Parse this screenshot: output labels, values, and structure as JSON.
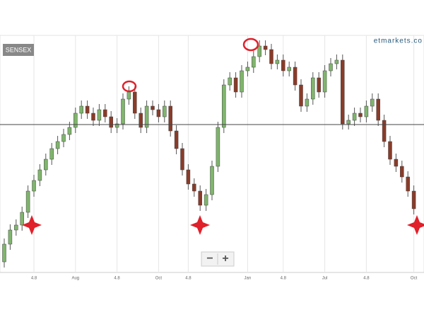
{
  "chart_data": {
    "type": "candlestick",
    "badge": "SENSEX",
    "watermark": "etmarkets.co",
    "zoom_out": "−",
    "zoom_in": "+",
    "up_color": "#7fb56c",
    "down_color": "#8a3b28",
    "ylim": [
      15,
      350
    ],
    "reference_line": 224,
    "grid": true,
    "x_labels": [
      {
        "index": 5,
        "label": "4.8"
      },
      {
        "index": 12,
        "label": "Aug"
      },
      {
        "index": 19,
        "label": "4.8"
      },
      {
        "index": 26,
        "label": "Oct"
      },
      {
        "index": 31,
        "label": "4.8"
      },
      {
        "index": 41,
        "label": "Jan"
      },
      {
        "index": 47,
        "label": "4.8"
      },
      {
        "index": 54,
        "label": "Jul"
      },
      {
        "index": 61,
        "label": "4.8"
      },
      {
        "index": 69,
        "label": "Oct"
      }
    ],
    "open": [
      30,
      55,
      75,
      82,
      100,
      130,
      145,
      160,
      175,
      190,
      200,
      210,
      220,
      240,
      250,
      240,
      230,
      245,
      235,
      220,
      225,
      260,
      270,
      240,
      220,
      250,
      245,
      235,
      250,
      215,
      190,
      160,
      140,
      130,
      110,
      125,
      165,
      220,
      280,
      290,
      270,
      300,
      305,
      320,
      335,
      330,
      310,
      315,
      300,
      305,
      280,
      250,
      260,
      290,
      270,
      300,
      310,
      315,
      225,
      230,
      240,
      235,
      250,
      260,
      230,
      200,
      175,
      165,
      150,
      130
    ],
    "high": [
      63,
      83,
      90,
      108,
      138,
      153,
      168,
      183,
      198,
      208,
      218,
      228,
      248,
      258,
      258,
      248,
      253,
      253,
      243,
      233,
      268,
      278,
      278,
      248,
      258,
      258,
      253,
      258,
      258,
      223,
      198,
      168,
      148,
      138,
      133,
      173,
      228,
      288,
      298,
      298,
      308,
      313,
      328,
      343,
      343,
      338,
      323,
      323,
      313,
      313,
      288,
      268,
      298,
      298,
      308,
      318,
      323,
      323,
      238,
      248,
      248,
      258,
      268,
      268,
      238,
      208,
      183,
      173,
      158,
      138
    ],
    "low": [
      22,
      47,
      67,
      74,
      92,
      122,
      137,
      152,
      167,
      182,
      192,
      202,
      212,
      232,
      232,
      222,
      222,
      227,
      212,
      212,
      217,
      252,
      232,
      212,
      212,
      237,
      227,
      227,
      207,
      182,
      152,
      132,
      122,
      102,
      102,
      117,
      157,
      212,
      272,
      262,
      262,
      292,
      297,
      312,
      322,
      302,
      302,
      292,
      292,
      272,
      242,
      242,
      252,
      262,
      262,
      292,
      302,
      217,
      217,
      222,
      227,
      227,
      242,
      222,
      192,
      167,
      157,
      142,
      122,
      97
    ],
    "close": [
      55,
      75,
      82,
      100,
      130,
      145,
      160,
      175,
      190,
      200,
      210,
      220,
      240,
      250,
      240,
      230,
      245,
      235,
      220,
      225,
      260,
      270,
      240,
      220,
      250,
      245,
      235,
      250,
      215,
      190,
      160,
      140,
      130,
      110,
      125,
      165,
      220,
      280,
      290,
      270,
      300,
      305,
      320,
      335,
      330,
      310,
      315,
      300,
      305,
      280,
      250,
      260,
      290,
      270,
      300,
      310,
      315,
      225,
      230,
      240,
      235,
      250,
      260,
      230,
      200,
      175,
      165,
      150,
      130,
      105
    ]
  }
}
